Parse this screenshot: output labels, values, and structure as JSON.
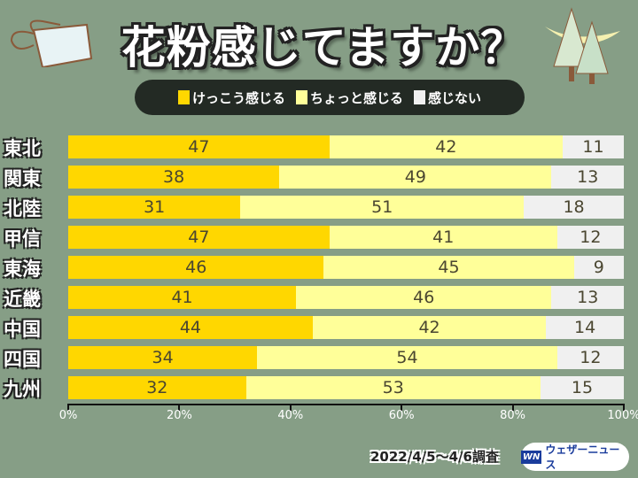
{
  "title": "花粉感じてますか？",
  "chart_data": {
    "type": "bar",
    "stacked": true,
    "orientation": "horizontal",
    "title": "花粉感じてますか？",
    "categories": [
      "東北",
      "関東",
      "北陸",
      "甲信",
      "東海",
      "近畿",
      "中国",
      "四国",
      "九州"
    ],
    "series": [
      {
        "name": "けっこう感じる",
        "color": "#ffd700",
        "values": [
          47,
          38,
          31,
          47,
          46,
          41,
          44,
          34,
          32
        ]
      },
      {
        "name": "ちょっと感じる",
        "color": "#ffff99",
        "values": [
          42,
          49,
          51,
          41,
          45,
          46,
          42,
          54,
          53
        ]
      },
      {
        "name": "感じない",
        "color": "#f0f0f0",
        "values": [
          11,
          13,
          18,
          12,
          9,
          13,
          14,
          12,
          15
        ]
      }
    ],
    "xlim": [
      0,
      100
    ],
    "xticks": [
      "0%",
      "20%",
      "40%",
      "60%",
      "80%",
      "100%"
    ],
    "legend": "top"
  },
  "footer": {
    "date": "2022/4/5〜4/6調査",
    "logo_mark": "WN",
    "logo_text": "ウェザーニュース"
  }
}
